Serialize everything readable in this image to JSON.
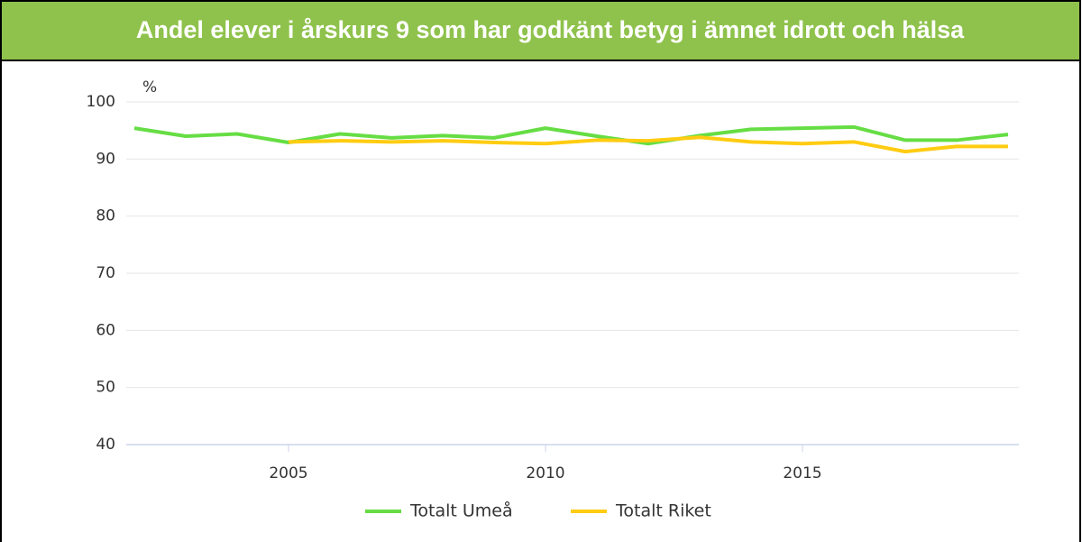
{
  "chart_data": {
    "type": "line",
    "title": "Andel elever i årskurs 9 som har godkänt betyg i ämnet idrott och hälsa",
    "y_label": "%",
    "x": [
      2002,
      2003,
      2004,
      2005,
      2006,
      2007,
      2008,
      2009,
      2010,
      2011,
      2012,
      2013,
      2014,
      2015,
      2016,
      2017,
      2018,
      2019
    ],
    "series": [
      {
        "name": "Totalt Umeå",
        "color": "#66dd44",
        "values": [
          95.4,
          94.0,
          94.4,
          92.9,
          94.4,
          93.7,
          94.1,
          93.7,
          95.4,
          94.0,
          92.7,
          94.1,
          95.2,
          95.4,
          95.6,
          93.3,
          93.3,
          94.3
        ]
      },
      {
        "name": "Totalt Riket",
        "color": "#ffcc11",
        "values": [
          null,
          null,
          null,
          93.0,
          93.2,
          93.0,
          93.2,
          92.9,
          92.7,
          93.3,
          93.2,
          93.8,
          93.0,
          92.7,
          93.0,
          91.3,
          92.2,
          92.2
        ]
      }
    ],
    "xlim": [
      2002,
      2019
    ],
    "xticks": [
      2005,
      2010,
      2015
    ],
    "ylim": [
      40,
      100
    ],
    "yticks": [
      40,
      50,
      60,
      70,
      80,
      90,
      100
    ],
    "grid": true,
    "legend": "bottom"
  }
}
